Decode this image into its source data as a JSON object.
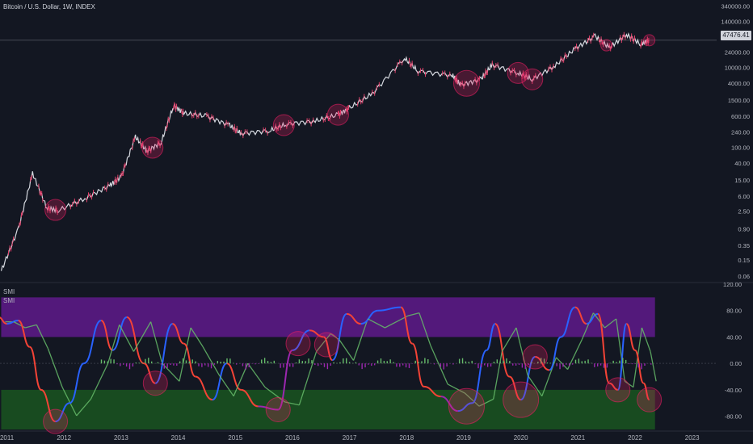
{
  "header": {
    "title": "Bitcoin / U.S. Dollar, 1W, INDEX"
  },
  "indicator": {
    "label1": "SMI",
    "label2": "SMI"
  },
  "price_badge": "47476.41",
  "colors": {
    "background": "#131722",
    "grid": "#1e222d",
    "candle": "#d6d9e0",
    "candle_red": "#e0406a",
    "circle_fill": "rgba(233,30,99,0.25)",
    "circle_stroke": "#e91e63",
    "overbought_band": "#6a1b9a",
    "oversold_band": "#1b5e20",
    "smi_blue": "#2962ff",
    "smi_green": "#66bb6a",
    "smi_red": "#f44336",
    "smi_purple": "#9c27b0"
  },
  "chart_data": [
    {
      "type": "line",
      "title": "Bitcoin / U.S. Dollar, 1W, INDEX",
      "scale": "log",
      "y_ticks": [
        "340000.00",
        "140000.00",
        "24000.00",
        "10000.00",
        "4000.00",
        "1500.00",
        "600.00",
        "240.00",
        "100.00",
        "40.00",
        "15.00",
        "6.00",
        "2.50",
        "0.90",
        "0.35",
        "0.15",
        "0.06"
      ],
      "x_ticks": [
        "2011",
        "2012",
        "2013",
        "2014",
        "2015",
        "2016",
        "2017",
        "2018",
        "2019",
        "2020",
        "2021",
        "2022",
        "2023"
      ],
      "last_price": 47476.41,
      "series": [
        {
          "values_approx": [
            {
              "x": 2010.9,
              "y": 0.08
            },
            {
              "x": 2011.2,
              "y": 0.9
            },
            {
              "x": 2011.45,
              "y": 22
            },
            {
              "x": 2011.7,
              "y": 3
            },
            {
              "x": 2011.9,
              "y": 2.6
            },
            {
              "x": 2012.4,
              "y": 5.5
            },
            {
              "x": 2012.8,
              "y": 11
            },
            {
              "x": 2013.0,
              "y": 18
            },
            {
              "x": 2013.25,
              "y": 180
            },
            {
              "x": 2013.45,
              "y": 80
            },
            {
              "x": 2013.7,
              "y": 130
            },
            {
              "x": 2013.92,
              "y": 1100
            },
            {
              "x": 2014.1,
              "y": 700
            },
            {
              "x": 2014.5,
              "y": 600
            },
            {
              "x": 2014.9,
              "y": 350
            },
            {
              "x": 2015.1,
              "y": 220
            },
            {
              "x": 2015.6,
              "y": 260
            },
            {
              "x": 2015.9,
              "y": 380
            },
            {
              "x": 2016.4,
              "y": 450
            },
            {
              "x": 2016.8,
              "y": 650
            },
            {
              "x": 2017.0,
              "y": 950
            },
            {
              "x": 2017.4,
              "y": 2200
            },
            {
              "x": 2017.96,
              "y": 17000
            },
            {
              "x": 2018.2,
              "y": 8000
            },
            {
              "x": 2018.8,
              "y": 6300
            },
            {
              "x": 2018.95,
              "y": 3600
            },
            {
              "x": 2019.3,
              "y": 5000
            },
            {
              "x": 2019.5,
              "y": 11500
            },
            {
              "x": 2019.95,
              "y": 7200
            },
            {
              "x": 2020.2,
              "y": 5000
            },
            {
              "x": 2020.6,
              "y": 11000
            },
            {
              "x": 2020.95,
              "y": 29000
            },
            {
              "x": 2021.3,
              "y": 60000
            },
            {
              "x": 2021.55,
              "y": 31000
            },
            {
              "x": 2021.85,
              "y": 66000
            },
            {
              "x": 2022.1,
              "y": 38000
            },
            {
              "x": 2022.25,
              "y": 47476
            }
          ]
        }
      ],
      "highlight_circles": [
        2011.85,
        2013.55,
        2015.85,
        2016.8,
        2019.05,
        2019.95,
        2020.2,
        2021.5,
        2022.25
      ]
    },
    {
      "type": "line",
      "title": "SMI",
      "y_ticks": [
        "120.00",
        "80.00",
        "40.00",
        "0.00",
        "-40.00",
        "-80.00"
      ],
      "ylim": [
        -100,
        120
      ],
      "overbought_band": [
        40,
        100
      ],
      "oversold_band": [
        -100,
        -40
      ],
      "series": [
        {
          "values_approx": [
            {
              "x": 2010.85,
              "y": 70
            },
            {
              "x": 2011.0,
              "y": 60
            },
            {
              "x": 2011.2,
              "y": 65
            },
            {
              "x": 2011.4,
              "y": 25
            },
            {
              "x": 2011.6,
              "y": -40
            },
            {
              "x": 2011.85,
              "y": -88
            },
            {
              "x": 2012.1,
              "y": -60
            },
            {
              "x": 2012.35,
              "y": 0
            },
            {
              "x": 2012.65,
              "y": 65
            },
            {
              "x": 2012.85,
              "y": 20
            },
            {
              "x": 2013.1,
              "y": 70
            },
            {
              "x": 2013.4,
              "y": 0
            },
            {
              "x": 2013.6,
              "y": -30
            },
            {
              "x": 2013.9,
              "y": 60
            },
            {
              "x": 2014.1,
              "y": 30
            },
            {
              "x": 2014.3,
              "y": -20
            },
            {
              "x": 2014.6,
              "y": -55
            },
            {
              "x": 2014.85,
              "y": 0
            },
            {
              "x": 2015.1,
              "y": -40
            },
            {
              "x": 2015.4,
              "y": -65
            },
            {
              "x": 2015.75,
              "y": -70
            },
            {
              "x": 2016.0,
              "y": 20
            },
            {
              "x": 2016.3,
              "y": 50
            },
            {
              "x": 2016.55,
              "y": 40
            },
            {
              "x": 2016.7,
              "y": 5
            },
            {
              "x": 2016.95,
              "y": 75
            },
            {
              "x": 2017.2,
              "y": 60
            },
            {
              "x": 2017.5,
              "y": 80
            },
            {
              "x": 2017.9,
              "y": 85
            },
            {
              "x": 2018.1,
              "y": 30
            },
            {
              "x": 2018.3,
              "y": -35
            },
            {
              "x": 2018.6,
              "y": -50
            },
            {
              "x": 2018.9,
              "y": -72
            },
            {
              "x": 2019.15,
              "y": -60
            },
            {
              "x": 2019.4,
              "y": 20
            },
            {
              "x": 2019.55,
              "y": 60
            },
            {
              "x": 2019.8,
              "y": -20
            },
            {
              "x": 2020.0,
              "y": -55
            },
            {
              "x": 2020.25,
              "y": 10
            },
            {
              "x": 2020.5,
              "y": -10
            },
            {
              "x": 2020.7,
              "y": 40
            },
            {
              "x": 2020.95,
              "y": 85
            },
            {
              "x": 2021.15,
              "y": 60
            },
            {
              "x": 2021.35,
              "y": 75
            },
            {
              "x": 2021.55,
              "y": -30
            },
            {
              "x": 2021.7,
              "y": -40
            },
            {
              "x": 2021.85,
              "y": 60
            },
            {
              "x": 2022.0,
              "y": 20
            },
            {
              "x": 2022.15,
              "y": -30
            },
            {
              "x": 2022.25,
              "y": -55
            }
          ]
        }
      ],
      "highlight_circles": [
        2011.85,
        2013.6,
        2015.75,
        2016.1,
        2016.6,
        2019.05,
        2020.0,
        2020.25,
        2021.7,
        2022.25
      ]
    }
  ]
}
